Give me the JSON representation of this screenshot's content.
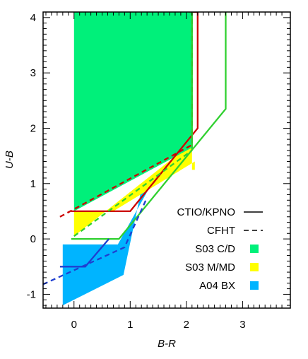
{
  "chart_data": {
    "type": "line",
    "xlabel": "B-R",
    "ylabel": "U-B",
    "xlim": [
      -0.55,
      3.85
    ],
    "ylim": [
      -1.25,
      4.1
    ],
    "xticks": [
      "0",
      "1",
      "2",
      "3"
    ],
    "yticks": [
      "-1",
      "0",
      "1",
      "2",
      "3",
      "4"
    ],
    "regions": [
      {
        "name": "A04 BX",
        "color": "#00b4ff",
        "polygon": [
          [
            -0.2,
            -0.1
          ],
          [
            0.78,
            -0.1
          ],
          [
            1.3,
            0.85
          ],
          [
            1.3,
            1.0
          ],
          [
            1.2,
            0.9
          ],
          [
            0.88,
            -0.65
          ],
          [
            -0.2,
            -1.2
          ]
        ]
      },
      {
        "name": "S03 M/MD",
        "color": "#ffff00",
        "polygon": [
          [
            0.0,
            0.5
          ],
          [
            0.7,
            0.5
          ],
          [
            2.15,
            1.4
          ],
          [
            2.15,
            1.25
          ],
          [
            2.1,
            1.25
          ],
          [
            2.1,
            1.65
          ],
          [
            2.0,
            1.65
          ],
          [
            0.0,
            0.05
          ]
        ]
      },
      {
        "name": "S03 C/D",
        "color": "#00f07a",
        "polygon": [
          [
            0.0,
            4.1
          ],
          [
            2.1,
            4.1
          ],
          [
            2.1,
            1.65
          ],
          [
            0.0,
            0.5
          ]
        ]
      }
    ],
    "series": [
      {
        "color": "#cc0000",
        "style": "solid",
        "x": [
          -0.05,
          1.0,
          2.2,
          2.2,
          2.05,
          2.05
        ],
        "y": [
          0.5,
          0.5,
          2.0,
          4.1,
          4.1,
          4.1
        ]
      },
      {
        "color": "#cc0000",
        "style": "dashed",
        "x": [
          -0.25,
          2.1,
          2.1
        ],
        "y": [
          0.4,
          1.7,
          4.1
        ]
      },
      {
        "color": "#30d030",
        "style": "solid",
        "x": [
          -0.05,
          0.8,
          2.7,
          2.7
        ],
        "y": [
          0.0,
          0.0,
          2.35,
          4.1
        ]
      },
      {
        "color": "#30d030",
        "style": "dashed",
        "x": [
          0.0,
          2.1
        ],
        "y": [
          0.05,
          1.6
        ]
      },
      {
        "color": "#30d030",
        "style": "solid",
        "x": [
          2.05,
          2.1,
          2.1
        ],
        "y": [
          4.1,
          4.1,
          1.6
        ]
      },
      {
        "color": "#1f3fd0",
        "style": "solid",
        "x": [
          -0.25,
          0.2,
          0.62
        ],
        "y": [
          -0.5,
          -0.5,
          0.0
        ]
      },
      {
        "color": "#1f3fd0",
        "style": "dashed",
        "x": [
          -0.55,
          0.9,
          1.3
        ],
        "y": [
          -0.82,
          -0.15,
          0.75
        ]
      }
    ],
    "legend": {
      "position": "right",
      "entries": [
        {
          "label": "CTIO/KPNO",
          "kind": "line",
          "style": "solid",
          "color": "#000000"
        },
        {
          "label": "CFHT",
          "kind": "line",
          "style": "dashed",
          "color": "#000000"
        },
        {
          "label": "S03 C/D",
          "kind": "swatch",
          "color": "#00f07a"
        },
        {
          "label": "S03 M/MD",
          "kind": "swatch",
          "color": "#ffff00"
        },
        {
          "label": "A04 BX",
          "kind": "swatch",
          "color": "#00b4ff"
        }
      ]
    }
  }
}
